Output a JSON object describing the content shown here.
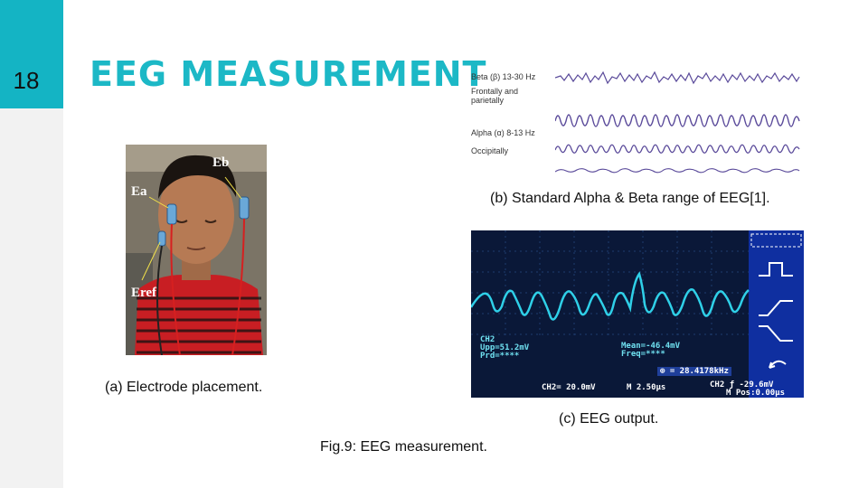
{
  "slide_number": "18",
  "title": "EEG MEASUREMENT",
  "photo": {
    "label_ea": "Ea",
    "label_eb": "Eb",
    "label_eref": "Eref",
    "caption": "(a) Electrode placement."
  },
  "waves": {
    "beta_label": "Beta (β)  13-30 Hz",
    "frontal_label_1": "Frontally and",
    "frontal_label_2": "parietally",
    "alpha_label": "Alpha (α)  8-13 Hz",
    "occipital_label": "Occipitally",
    "caption": "(b) Standard Alpha & Beta range of EEG[1]."
  },
  "scope": {
    "ch2": "CH2",
    "upp": "Upp=51.2mV",
    "prd": "Prd=****",
    "mean": "Mean=-46.4mV",
    "freq": "Freq=****",
    "freq_readout": "⊕ = 28.4178kHz",
    "bottom_left": "CH2= 20.0mV",
    "time_scale": "M 2.50μs",
    "trigger": "CH2 ƒ -29.6mV",
    "mpos": "M Pos:0.00μs",
    "caption": "(c) EEG output."
  },
  "figure_caption": "Fig.9: EEG measurement.",
  "colors": {
    "accent": "#14b4c4",
    "wave": "#5a4a9a",
    "scope_trace": "#2fd0e8",
    "scope_bg": "#0a1838"
  }
}
